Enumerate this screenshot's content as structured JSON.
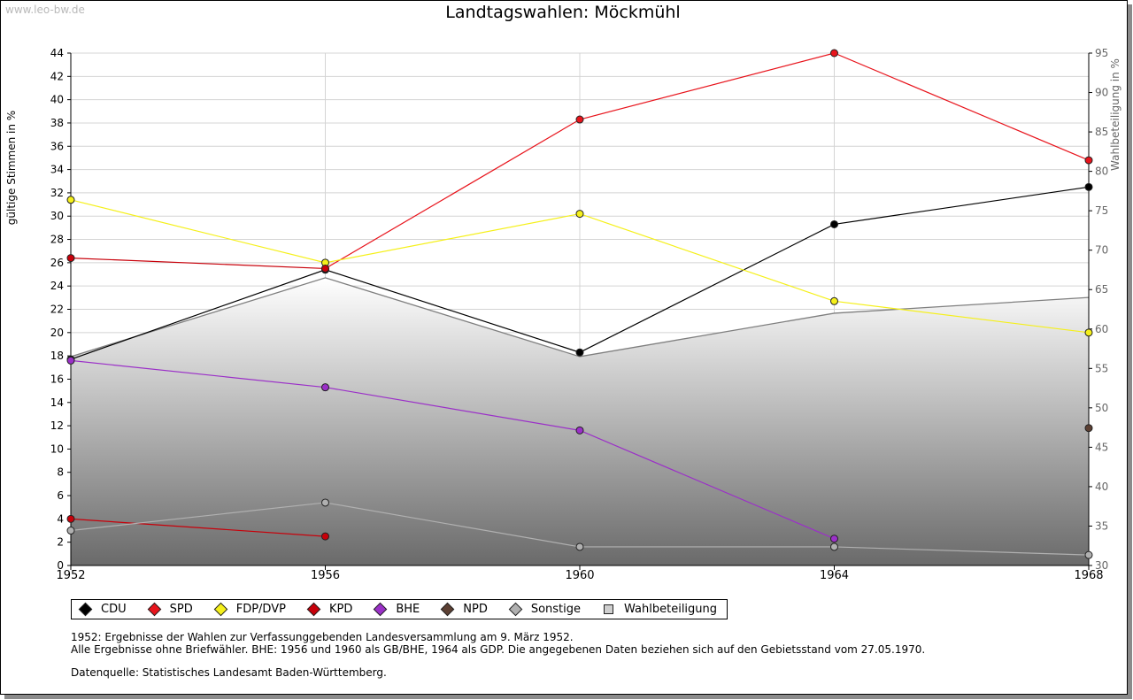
{
  "watermark": "www.leo-bw.de",
  "title": "Landtagswahlen: Möckmühl",
  "chart_data": {
    "type": "line",
    "title": "Landtagswahlen: Möckmühl",
    "ylabel": "gültige Stimmen in %",
    "y2label": "Wahlbeteiligung in %",
    "x": [
      1952,
      1956,
      1960,
      1964,
      1968
    ],
    "x_ticks": [
      "1952",
      "1956",
      "1960",
      "1964",
      "1968"
    ],
    "ylim": [
      0,
      44
    ],
    "y_ticks": [
      "0",
      "2",
      "4",
      "6",
      "8",
      "10",
      "12",
      "14",
      "16",
      "18",
      "20",
      "22",
      "24",
      "26",
      "28",
      "30",
      "32",
      "34",
      "36",
      "38",
      "40",
      "42",
      "44"
    ],
    "y2lim": [
      30,
      95
    ],
    "y2_ticks": [
      "30",
      "35",
      "40",
      "45",
      "50",
      "55",
      "60",
      "65",
      "70",
      "75",
      "80",
      "85",
      "90",
      "95"
    ],
    "grid": true,
    "series": [
      {
        "name": "CDU",
        "color": "#000000",
        "values": [
          17.7,
          25.4,
          18.3,
          29.3,
          32.5
        ]
      },
      {
        "name": "SPD",
        "color": "#e8141c",
        "values": [
          null,
          25.5,
          38.3,
          44.0,
          34.8
        ]
      },
      {
        "name": "FDP/DVP",
        "color": "#f5f01a",
        "values": [
          31.4,
          26.0,
          30.2,
          22.7,
          20.0
        ]
      },
      {
        "name": "KPD",
        "color": "#c8000a",
        "values": [
          26.4,
          25.5,
          null,
          null,
          null
        ]
      },
      {
        "name": "KPD",
        "color": "#c8000a",
        "values": [
          4.0,
          2.5,
          null,
          null,
          null
        ]
      },
      {
        "name": "BHE",
        "color": "#9b30c8",
        "values": [
          17.6,
          15.3,
          11.6,
          2.3,
          null
        ]
      },
      {
        "name": "NPD",
        "color": "#5c4033",
        "values": [
          null,
          null,
          null,
          null,
          11.8
        ]
      },
      {
        "name": "Sonstige",
        "color": "#b0b0b0",
        "values": [
          3.0,
          5.4,
          1.6,
          1.6,
          0.9
        ]
      }
    ],
    "turnout": {
      "name": "Wahlbeteiligung",
      "color": "#7f7f7f",
      "values": [
        56.5,
        66.5,
        56.5,
        62.0,
        64.0
      ]
    },
    "legend_position": "bottom"
  },
  "legend": [
    {
      "label": "CDU",
      "color": "#000000",
      "kind": "marker"
    },
    {
      "label": "SPD",
      "color": "#e8141c",
      "kind": "marker"
    },
    {
      "label": "FDP/DVP",
      "color": "#f5f01a",
      "kind": "marker"
    },
    {
      "label": "KPD",
      "color": "#c8000a",
      "kind": "marker"
    },
    {
      "label": "BHE",
      "color": "#9b30c8",
      "kind": "marker"
    },
    {
      "label": "NPD",
      "color": "#5c4033",
      "kind": "marker"
    },
    {
      "label": "Sonstige",
      "color": "#b0b0b0",
      "kind": "marker"
    },
    {
      "label": "Wahlbeteiligung",
      "color": "#cfcfcf",
      "kind": "area"
    }
  ],
  "notes": {
    "line1": "1952: Ergebnisse der Wahlen zur Verfassunggebenden Landesversammlung am 9. März 1952.",
    "line2": "Alle Ergebnisse ohne Briefwähler. BHE: 1956 und 1960 als GB/BHE, 1964 als GDP. Die angegebenen Daten beziehen sich auf den Gebietsstand vom 27.05.1970.",
    "source": "Datenquelle: Statistisches Landesamt Baden-Württemberg."
  }
}
